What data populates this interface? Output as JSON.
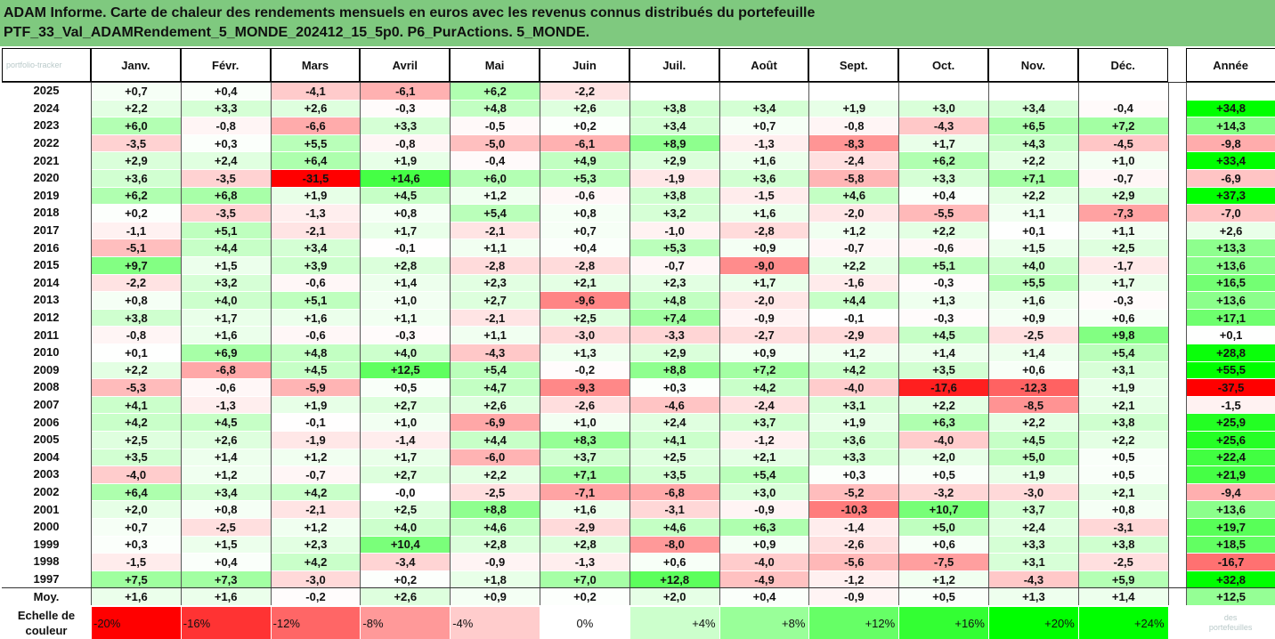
{
  "title": {
    "line1": "ADAM Informe. Carte de chaleur des rendements mensuels en euros avec les revenus connus distribués du portefeuille",
    "line2": "PTF_33_Val_ADAMRendement_5_MONDE_202412_15_5p0. P6_PurActions. 5_MONDE."
  },
  "watermark": {
    "top": "portfolio-tracker",
    "bottom_1": "des",
    "bottom_2": "portefeuilles"
  },
  "colors": {
    "title_bg": "#7fc97f",
    "neg_max": "#ff0000",
    "pos_max": "#00ff00",
    "neutral": "#ffffff"
  },
  "chart_data": {
    "type": "heatmap",
    "months": [
      "Janv.",
      "Févr.",
      "Mars",
      "Avril",
      "Mai",
      "Juin",
      "Juil.",
      "Août",
      "Sept.",
      "Oct.",
      "Nov.",
      "Déc."
    ],
    "annual_label": "Année",
    "rows": [
      {
        "year": "2025",
        "values": [
          "+0,7",
          "+0,4",
          "-4,1",
          "-6,1",
          "+6,2",
          "-2,2",
          "",
          "",
          "",
          "",
          "",
          ""
        ],
        "annual": ""
      },
      {
        "year": "2024",
        "values": [
          "+2,2",
          "+3,3",
          "+2,6",
          "-0,3",
          "+4,8",
          "+2,6",
          "+3,8",
          "+3,4",
          "+1,9",
          "+3,0",
          "+3,4",
          "-0,4"
        ],
        "annual": "+34,8"
      },
      {
        "year": "2023",
        "values": [
          "+6,0",
          "-0,8",
          "-6,6",
          "+3,3",
          "-0,5",
          "+0,2",
          "+3,4",
          "+0,7",
          "-0,8",
          "-4,3",
          "+6,5",
          "+7,2"
        ],
        "annual": "+14,3"
      },
      {
        "year": "2022",
        "values": [
          "-3,5",
          "+0,3",
          "+5,5",
          "-0,8",
          "-5,0",
          "-6,1",
          "+8,9",
          "-1,3",
          "-8,3",
          "+1,7",
          "+4,3",
          "-4,5"
        ],
        "annual": "-9,8"
      },
      {
        "year": "2021",
        "values": [
          "+2,9",
          "+2,4",
          "+6,4",
          "+1,9",
          "-0,4",
          "+4,9",
          "+2,9",
          "+1,6",
          "-2,4",
          "+6,2",
          "+2,2",
          "+1,0"
        ],
        "annual": "+33,4"
      },
      {
        "year": "2020",
        "values": [
          "+3,6",
          "-3,5",
          "-31,5",
          "+14,6",
          "+6,0",
          "+5,3",
          "-1,9",
          "+3,6",
          "-5,8",
          "+3,3",
          "+7,1",
          "-0,7"
        ],
        "annual": "-6,9"
      },
      {
        "year": "2019",
        "values": [
          "+6,2",
          "+6,8",
          "+1,9",
          "+4,5",
          "+1,2",
          "-0,6",
          "+3,8",
          "-1,5",
          "+4,6",
          "+0,4",
          "+2,2",
          "+2,9"
        ],
        "annual": "+37,3"
      },
      {
        "year": "2018",
        "values": [
          "+0,2",
          "-3,5",
          "-1,3",
          "+0,8",
          "+5,4",
          "+0,8",
          "+3,2",
          "+1,6",
          "-2,0",
          "-5,5",
          "+1,1",
          "-7,3"
        ],
        "annual": "-7,0"
      },
      {
        "year": "2017",
        "values": [
          "-1,1",
          "+5,1",
          "-2,1",
          "+1,7",
          "-2,1",
          "+0,7",
          "-1,0",
          "-2,8",
          "+1,2",
          "+2,2",
          "+0,1",
          "+1,1"
        ],
        "annual": "+2,6"
      },
      {
        "year": "2016",
        "values": [
          "-5,1",
          "+4,4",
          "+3,4",
          "-0,1",
          "+1,1",
          "+0,4",
          "+5,3",
          "+0,9",
          "-0,7",
          "-0,6",
          "+1,5",
          "+2,5"
        ],
        "annual": "+13,3"
      },
      {
        "year": "2015",
        "values": [
          "+9,7",
          "+1,5",
          "+3,9",
          "+2,8",
          "-2,8",
          "-2,8",
          "-0,7",
          "-9,0",
          "+2,2",
          "+5,1",
          "+4,0",
          "-1,7"
        ],
        "annual": "+13,6"
      },
      {
        "year": "2014",
        "values": [
          "-2,2",
          "+3,2",
          "-0,6",
          "+1,4",
          "+2,3",
          "+2,1",
          "+2,3",
          "+1,7",
          "-1,6",
          "-0,3",
          "+5,5",
          "+1,7"
        ],
        "annual": "+16,5"
      },
      {
        "year": "2013",
        "values": [
          "+0,8",
          "+4,0",
          "+5,1",
          "+1,0",
          "+2,7",
          "-9,6",
          "+4,8",
          "-2,0",
          "+4,4",
          "+1,3",
          "+1,6",
          "-0,3"
        ],
        "annual": "+13,6"
      },
      {
        "year": "2012",
        "values": [
          "+3,8",
          "+1,7",
          "+1,6",
          "+1,1",
          "-2,1",
          "+2,5",
          "+7,4",
          "-0,9",
          "-0,1",
          "-0,3",
          "+0,9",
          "+0,6"
        ],
        "annual": "+17,1"
      },
      {
        "year": "2011",
        "values": [
          "-0,8",
          "+1,6",
          "-0,6",
          "-0,3",
          "+1,1",
          "-3,0",
          "-3,3",
          "-2,7",
          "-2,9",
          "+4,5",
          "-2,5",
          "+9,8"
        ],
        "annual": "+0,1"
      },
      {
        "year": "2010",
        "values": [
          "+0,1",
          "+6,9",
          "+4,8",
          "+4,0",
          "-4,3",
          "+1,3",
          "+2,9",
          "+0,9",
          "+1,2",
          "+1,4",
          "+1,4",
          "+5,4"
        ],
        "annual": "+28,8"
      },
      {
        "year": "2009",
        "values": [
          "+2,2",
          "-6,8",
          "+4,5",
          "+12,5",
          "+5,4",
          "-0,2",
          "+8,8",
          "+7,2",
          "+4,2",
          "+3,5",
          "+0,6",
          "+3,1"
        ],
        "annual": "+55,5"
      },
      {
        "year": "2008",
        "values": [
          "-5,3",
          "-0,6",
          "-5,9",
          "+0,5",
          "+4,7",
          "-9,3",
          "+0,3",
          "+4,2",
          "-4,0",
          "-17,6",
          "-12,3",
          "+1,9"
        ],
        "annual": "-37,5"
      },
      {
        "year": "2007",
        "values": [
          "+4,1",
          "-1,3",
          "+1,9",
          "+2,7",
          "+2,6",
          "-2,6",
          "-4,6",
          "-2,4",
          "+3,1",
          "+2,2",
          "-8,5",
          "+2,1"
        ],
        "annual": "-1,5"
      },
      {
        "year": "2006",
        "values": [
          "+4,2",
          "+4,5",
          "-0,1",
          "+1,0",
          "-6,9",
          "+1,0",
          "+2,4",
          "+3,7",
          "+1,9",
          "+6,3",
          "+2,2",
          "+3,8"
        ],
        "annual": "+25,9"
      },
      {
        "year": "2005",
        "values": [
          "+2,5",
          "+2,6",
          "-1,9",
          "-1,4",
          "+4,4",
          "+8,3",
          "+4,1",
          "-1,2",
          "+3,6",
          "-4,0",
          "+4,5",
          "+2,2"
        ],
        "annual": "+25,6"
      },
      {
        "year": "2004",
        "values": [
          "+3,5",
          "+1,4",
          "+1,2",
          "+1,7",
          "-6,0",
          "+3,7",
          "+2,5",
          "+2,1",
          "+3,3",
          "+2,0",
          "+5,0",
          "+0,5"
        ],
        "annual": "+22,4"
      },
      {
        "year": "2003",
        "values": [
          "-4,0",
          "+1,2",
          "-0,7",
          "+2,7",
          "+2,2",
          "+7,1",
          "+3,5",
          "+5,4",
          "+0,3",
          "+0,5",
          "+1,9",
          "+0,5"
        ],
        "annual": "+21,9"
      },
      {
        "year": "2002",
        "values": [
          "+6,4",
          "+3,4",
          "+4,2",
          "-0,0",
          "-2,5",
          "-7,1",
          "-6,8",
          "+3,0",
          "-5,2",
          "-3,2",
          "-3,0",
          "+2,1"
        ],
        "annual": "-9,4"
      },
      {
        "year": "2001",
        "values": [
          "+2,0",
          "+0,8",
          "-2,1",
          "+2,5",
          "+8,8",
          "+1,6",
          "-3,1",
          "-0,9",
          "-10,3",
          "+10,7",
          "+3,7",
          "+0,8"
        ],
        "annual": "+13,6"
      },
      {
        "year": "2000",
        "values": [
          "+0,7",
          "-2,5",
          "+1,2",
          "+4,0",
          "+4,6",
          "-2,9",
          "+4,6",
          "+6,3",
          "-1,4",
          "+5,0",
          "+2,4",
          "-3,1"
        ],
        "annual": "+19,7"
      },
      {
        "year": "1999",
        "values": [
          "+0,3",
          "+1,5",
          "+2,3",
          "+10,4",
          "+2,8",
          "+2,8",
          "-8,0",
          "+0,9",
          "-2,6",
          "+0,6",
          "+3,3",
          "+3,8"
        ],
        "annual": "+18,5"
      },
      {
        "year": "1998",
        "values": [
          "-1,5",
          "+0,4",
          "+4,2",
          "-3,4",
          "-0,9",
          "-1,3",
          "+0,6",
          "-4,0",
          "-5,6",
          "-7,5",
          "+3,1",
          "-2,5"
        ],
        "annual": "-16,7"
      },
      {
        "year": "1997",
        "values": [
          "+7,5",
          "+7,3",
          "-3,0",
          "+0,2",
          "+1,8",
          "+7,0",
          "+12,8",
          "-4,9",
          "-1,2",
          "+1,2",
          "-4,3",
          "+5,9"
        ],
        "annual": "+32,8"
      }
    ],
    "average": {
      "label": "Moy.",
      "values": [
        "+1,6",
        "+1,6",
        "-0,2",
        "+2,6",
        "+0,9",
        "+0,2",
        "+2,0",
        "+0,4",
        "-0,9",
        "+0,5",
        "+1,3",
        "+1,4"
      ],
      "annual": "+12,5"
    },
    "scale": {
      "label_1": "Echelle de",
      "label_2": "couleur",
      "items": [
        {
          "text": "-20%",
          "value": -20
        },
        {
          "text": "-16%",
          "value": -16
        },
        {
          "text": "-12%",
          "value": -12
        },
        {
          "text": "-8%",
          "value": -8
        },
        {
          "text": "-4%",
          "value": -4
        },
        {
          "text": "0%",
          "value": 0
        },
        {
          "text": "+4%",
          "value": 4
        },
        {
          "text": "+8%",
          "value": 8
        },
        {
          "text": "+12%",
          "value": 12
        },
        {
          "text": "+16%",
          "value": 16
        },
        {
          "text": "+20%",
          "value": 20
        },
        {
          "text": "+24%",
          "value": 24
        }
      ]
    },
    "color_range": {
      "monthly_max": 20,
      "annual_max": 30
    }
  }
}
